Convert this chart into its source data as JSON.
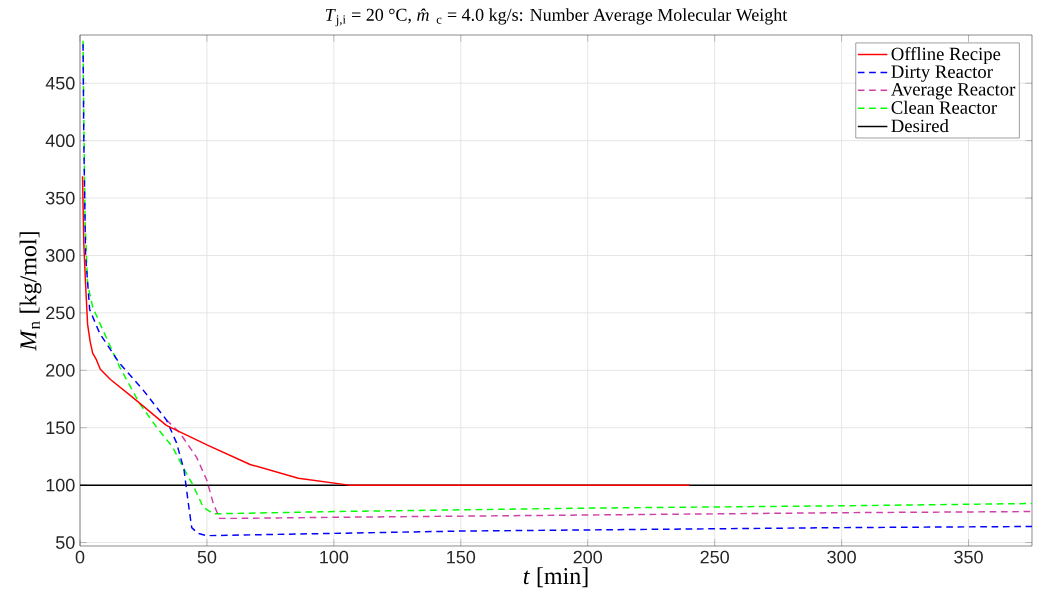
{
  "chart_data": {
    "type": "line",
    "title": "*T*$_{j,i}$ = 20 °C, *m̂*$_{c}$ = 4.0 kg/s: Number Average Molecular Weight",
    "xlabel": "*t* [min]",
    "ylabel": "*M*$_{n}$ [kg/mol]",
    "xlim": [
      0,
      375
    ],
    "ylim": [
      47,
      492
    ],
    "xticks": [
      0,
      50,
      100,
      150,
      200,
      250,
      300,
      350
    ],
    "yticks": [
      50,
      100,
      150,
      200,
      250,
      300,
      350,
      400,
      450
    ],
    "grid": true,
    "legend": "top right",
    "series": [
      {
        "name": "Offline Recipe",
        "color": "#ff0000",
        "line_style": "solid",
        "x": [
          1,
          1.5,
          2.2,
          3,
          4,
          5,
          6.5,
          8,
          12,
          21,
          34,
          50,
          67,
          86,
          106,
          150,
          200,
          240
        ],
        "values": [
          369,
          310,
          275,
          240,
          225,
          215,
          209,
          201,
          192,
          176,
          152,
          135,
          118,
          106,
          100,
          100,
          100,
          100
        ]
      },
      {
        "name": "Dirty Reactor",
        "color": "#0000ff",
        "line_style": "dashed",
        "x": [
          1.2,
          1.5,
          2.2,
          3.8,
          7.8,
          15.6,
          24.8,
          34,
          38,
          41,
          42.5,
          44,
          46.5,
          50,
          100,
          150,
          200,
          250,
          300,
          375
        ],
        "values": [
          484,
          400,
          300,
          253,
          232,
          206,
          183,
          157,
          137,
          113,
          87,
          63,
          58,
          56,
          58,
          60,
          61,
          62,
          63,
          64
        ]
      },
      {
        "name": "Average Reactor",
        "color": "#cf3fa8",
        "line_style": "dashed",
        "x": [
          34,
          39.5,
          46,
          50,
          52.5,
          55,
          60,
          100,
          200,
          300,
          375
        ],
        "values": [
          157,
          145,
          124,
          104,
          84,
          71,
          71,
          72,
          74,
          76,
          77
        ]
      },
      {
        "name": "Clean Reactor",
        "color": "#00ff00",
        "line_style": "dashed",
        "x": [
          1.2,
          1.5,
          2,
          3,
          5,
          8,
          15.6,
          23.5,
          30,
          36.5,
          40.5,
          44.5,
          48.5,
          52.5,
          100,
          200,
          300,
          375
        ],
        "values": [
          487,
          420,
          330,
          275,
          255,
          240,
          203,
          171,
          151,
          133,
          116,
          100,
          81,
          75,
          77,
          80,
          82,
          84
        ]
      },
      {
        "name": "Desired",
        "color": "#000000",
        "line_style": "solid",
        "x": [
          0,
          375
        ],
        "values": [
          100,
          100
        ]
      }
    ]
  }
}
